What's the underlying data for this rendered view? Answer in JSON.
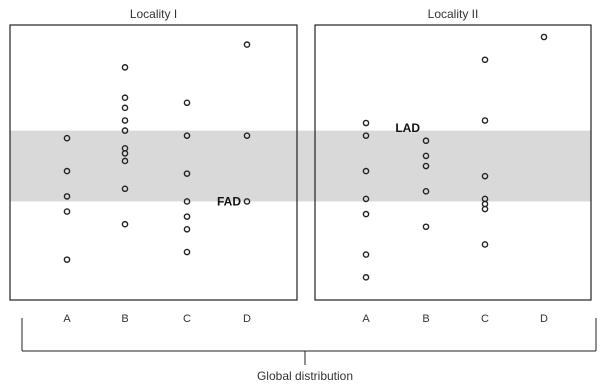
{
  "chart_data": [
    {
      "type": "scatter",
      "title": "Locality I",
      "categories": [
        "A",
        "B",
        "C",
        "D"
      ],
      "ylim": [
        0,
        100
      ],
      "points": [
        {
          "x": "A",
          "ys": [
            60,
            47,
            37,
            31,
            12
          ]
        },
        {
          "x": "B",
          "ys": [
            88,
            76,
            72,
            67,
            63,
            56,
            54,
            51,
            40,
            26
          ]
        },
        {
          "x": "C",
          "ys": [
            74,
            61,
            46,
            35,
            29,
            24,
            15
          ]
        },
        {
          "x": "D",
          "ys": [
            97,
            61,
            35
          ]
        }
      ],
      "annotations": [
        {
          "text": "FAD",
          "x": "D",
          "y": 35
        }
      ]
    },
    {
      "type": "scatter",
      "title": "Locality II",
      "categories": [
        "A",
        "B",
        "C",
        "D"
      ],
      "ylim": [
        0,
        100
      ],
      "points": [
        {
          "x": "A",
          "ys": [
            66,
            61,
            47,
            36,
            30,
            14,
            5
          ]
        },
        {
          "x": "B",
          "ys": [
            59,
            53,
            49,
            39,
            25
          ]
        },
        {
          "x": "C",
          "ys": [
            91,
            67,
            45,
            36,
            34,
            32,
            18
          ]
        },
        {
          "x": "D",
          "ys": [
            100
          ]
        }
      ],
      "annotations": [
        {
          "text": "LAD",
          "x": "B",
          "y": 64
        }
      ]
    }
  ],
  "shaded_band": {
    "from": 35,
    "to": 63,
    "color": "#d9d9d9"
  },
  "caption": "Global distribution",
  "colors": {
    "frame": "#222222",
    "marker": "#222222",
    "band": "#d9d9d9"
  }
}
